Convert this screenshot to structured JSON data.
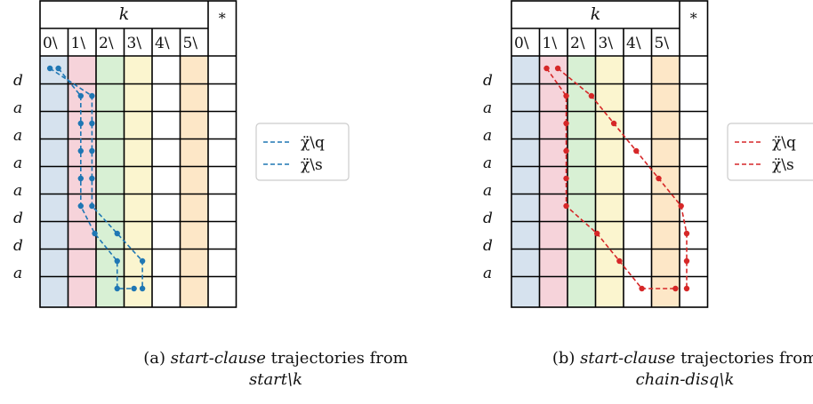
{
  "panels": [
    {
      "id": "a",
      "header": "k",
      "star": "*",
      "columns": [
        "0\\",
        "1\\",
        "2\\",
        "3\\",
        "4\\",
        "5\\"
      ],
      "rows": [
        "d",
        "a",
        "a",
        "a",
        "a",
        "d",
        "d",
        "a"
      ],
      "legend": [
        "χ̈\\q",
        "χ̈\\s"
      ],
      "caption": {
        "label": "(a)",
        "italic": "start-clause",
        "mid": "trajectories from",
        "line2": "start\\k"
      },
      "series": [
        {
          "name": "χ̈\\q",
          "points": [
            [
              0.1,
              0
            ],
            [
              1.6,
              1
            ],
            [
              1.6,
              2
            ],
            [
              1.6,
              3
            ],
            [
              1.6,
              4
            ],
            [
              1.6,
              5
            ],
            [
              2.5,
              6
            ],
            [
              3.4,
              7
            ],
            [
              3.4,
              8
            ]
          ]
        },
        {
          "name": "χ̈\\s",
          "points": [
            [
              0.4,
              0
            ],
            [
              1.2,
              1
            ],
            [
              1.2,
              2
            ],
            [
              1.2,
              3
            ],
            [
              1.2,
              4
            ],
            [
              1.2,
              5
            ],
            [
              1.7,
              6
            ],
            [
              2.5,
              7
            ],
            [
              2.5,
              8
            ],
            [
              3.1,
              8
            ]
          ]
        }
      ]
    },
    {
      "id": "b",
      "header": "k",
      "star": "*",
      "columns": [
        "0\\",
        "1\\",
        "2\\",
        "3\\",
        "4\\",
        "5\\"
      ],
      "rows": [
        "d",
        "a",
        "a",
        "a",
        "a",
        "d",
        "d",
        "a"
      ],
      "legend": [
        "χ̈\\q",
        "χ̈\\s"
      ],
      "caption": {
        "label": "(b)",
        "italic": "start-clause",
        "mid": "trajectories from",
        "line2": "chain-disq\\k"
      },
      "series": [
        {
          "name": "χ̈\\q",
          "points": [
            [
              1.4,
              0
            ],
            [
              2.6,
              1
            ],
            [
              3.4,
              2
            ],
            [
              4.2,
              3
            ],
            [
              5.0,
              4
            ],
            [
              5.8,
              5
            ],
            [
              6.0,
              6
            ],
            [
              6.0,
              7
            ],
            [
              6.0,
              8
            ]
          ]
        },
        {
          "name": "χ̈\\s",
          "points": [
            [
              1.0,
              0
            ],
            [
              1.7,
              1
            ],
            [
              1.7,
              2
            ],
            [
              1.7,
              3
            ],
            [
              1.7,
              4
            ],
            [
              1.7,
              5
            ],
            [
              2.8,
              6
            ],
            [
              3.6,
              7
            ],
            [
              4.4,
              8
            ],
            [
              5.6,
              8
            ]
          ]
        }
      ]
    }
  ],
  "colors": {
    "col0": "#d6e2ee",
    "col1": "#f6d3da",
    "col2": "#d8f0d4",
    "col3": "#fbf5cf",
    "col4": "#ffffff",
    "col5": "#fde7c7",
    "blue": "#1f77b4",
    "red": "#d62728"
  }
}
